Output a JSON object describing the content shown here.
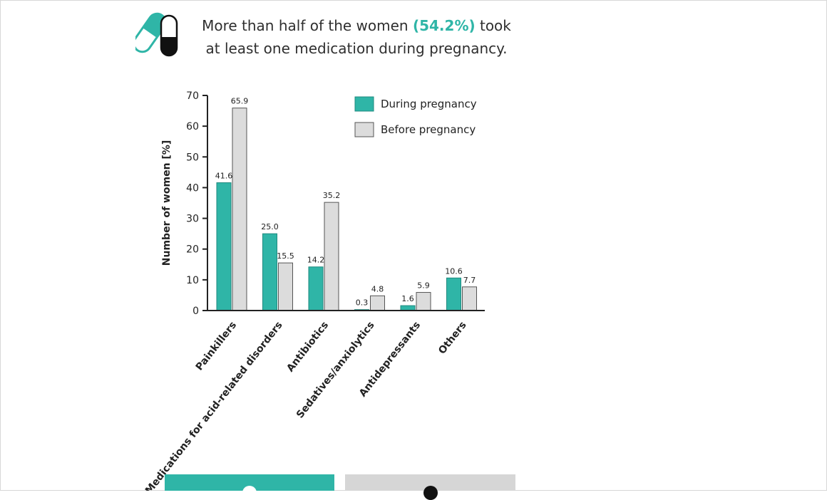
{
  "headline": {
    "part1": "More than half of the women ",
    "highlight": "(54.2%)",
    "part2": " took",
    "line2": "at least one medication during pregnancy."
  },
  "colors": {
    "during": "#2fb5a7",
    "before": "#dcdcdc",
    "axis": "#222222"
  },
  "chart_data": {
    "type": "bar",
    "ylabel": "Number of women [%]",
    "xlabel": "",
    "ylim": [
      0,
      70
    ],
    "yticks": [
      0,
      10,
      20,
      30,
      40,
      50,
      60,
      70
    ],
    "categories": [
      "Painkillers",
      "Medications for acid-related disorders",
      "Antibiotics",
      "Sedatives/anxiolytics",
      "Antidepressants",
      "Others"
    ],
    "series": [
      {
        "name": "During pregnancy",
        "values": [
          41.6,
          25.0,
          14.2,
          0.3,
          1.6,
          10.6
        ],
        "labels": [
          "41.6",
          "25.0",
          "14.2",
          "0.3",
          "1.6",
          "10.6"
        ]
      },
      {
        "name": "Before pregnancy",
        "values": [
          65.9,
          15.5,
          35.2,
          4.8,
          5.9,
          7.7
        ],
        "labels": [
          "65.9",
          "15.5",
          "35.2",
          "4.8",
          "5.9",
          "7.7"
        ]
      }
    ],
    "legend_position": "top-right"
  }
}
